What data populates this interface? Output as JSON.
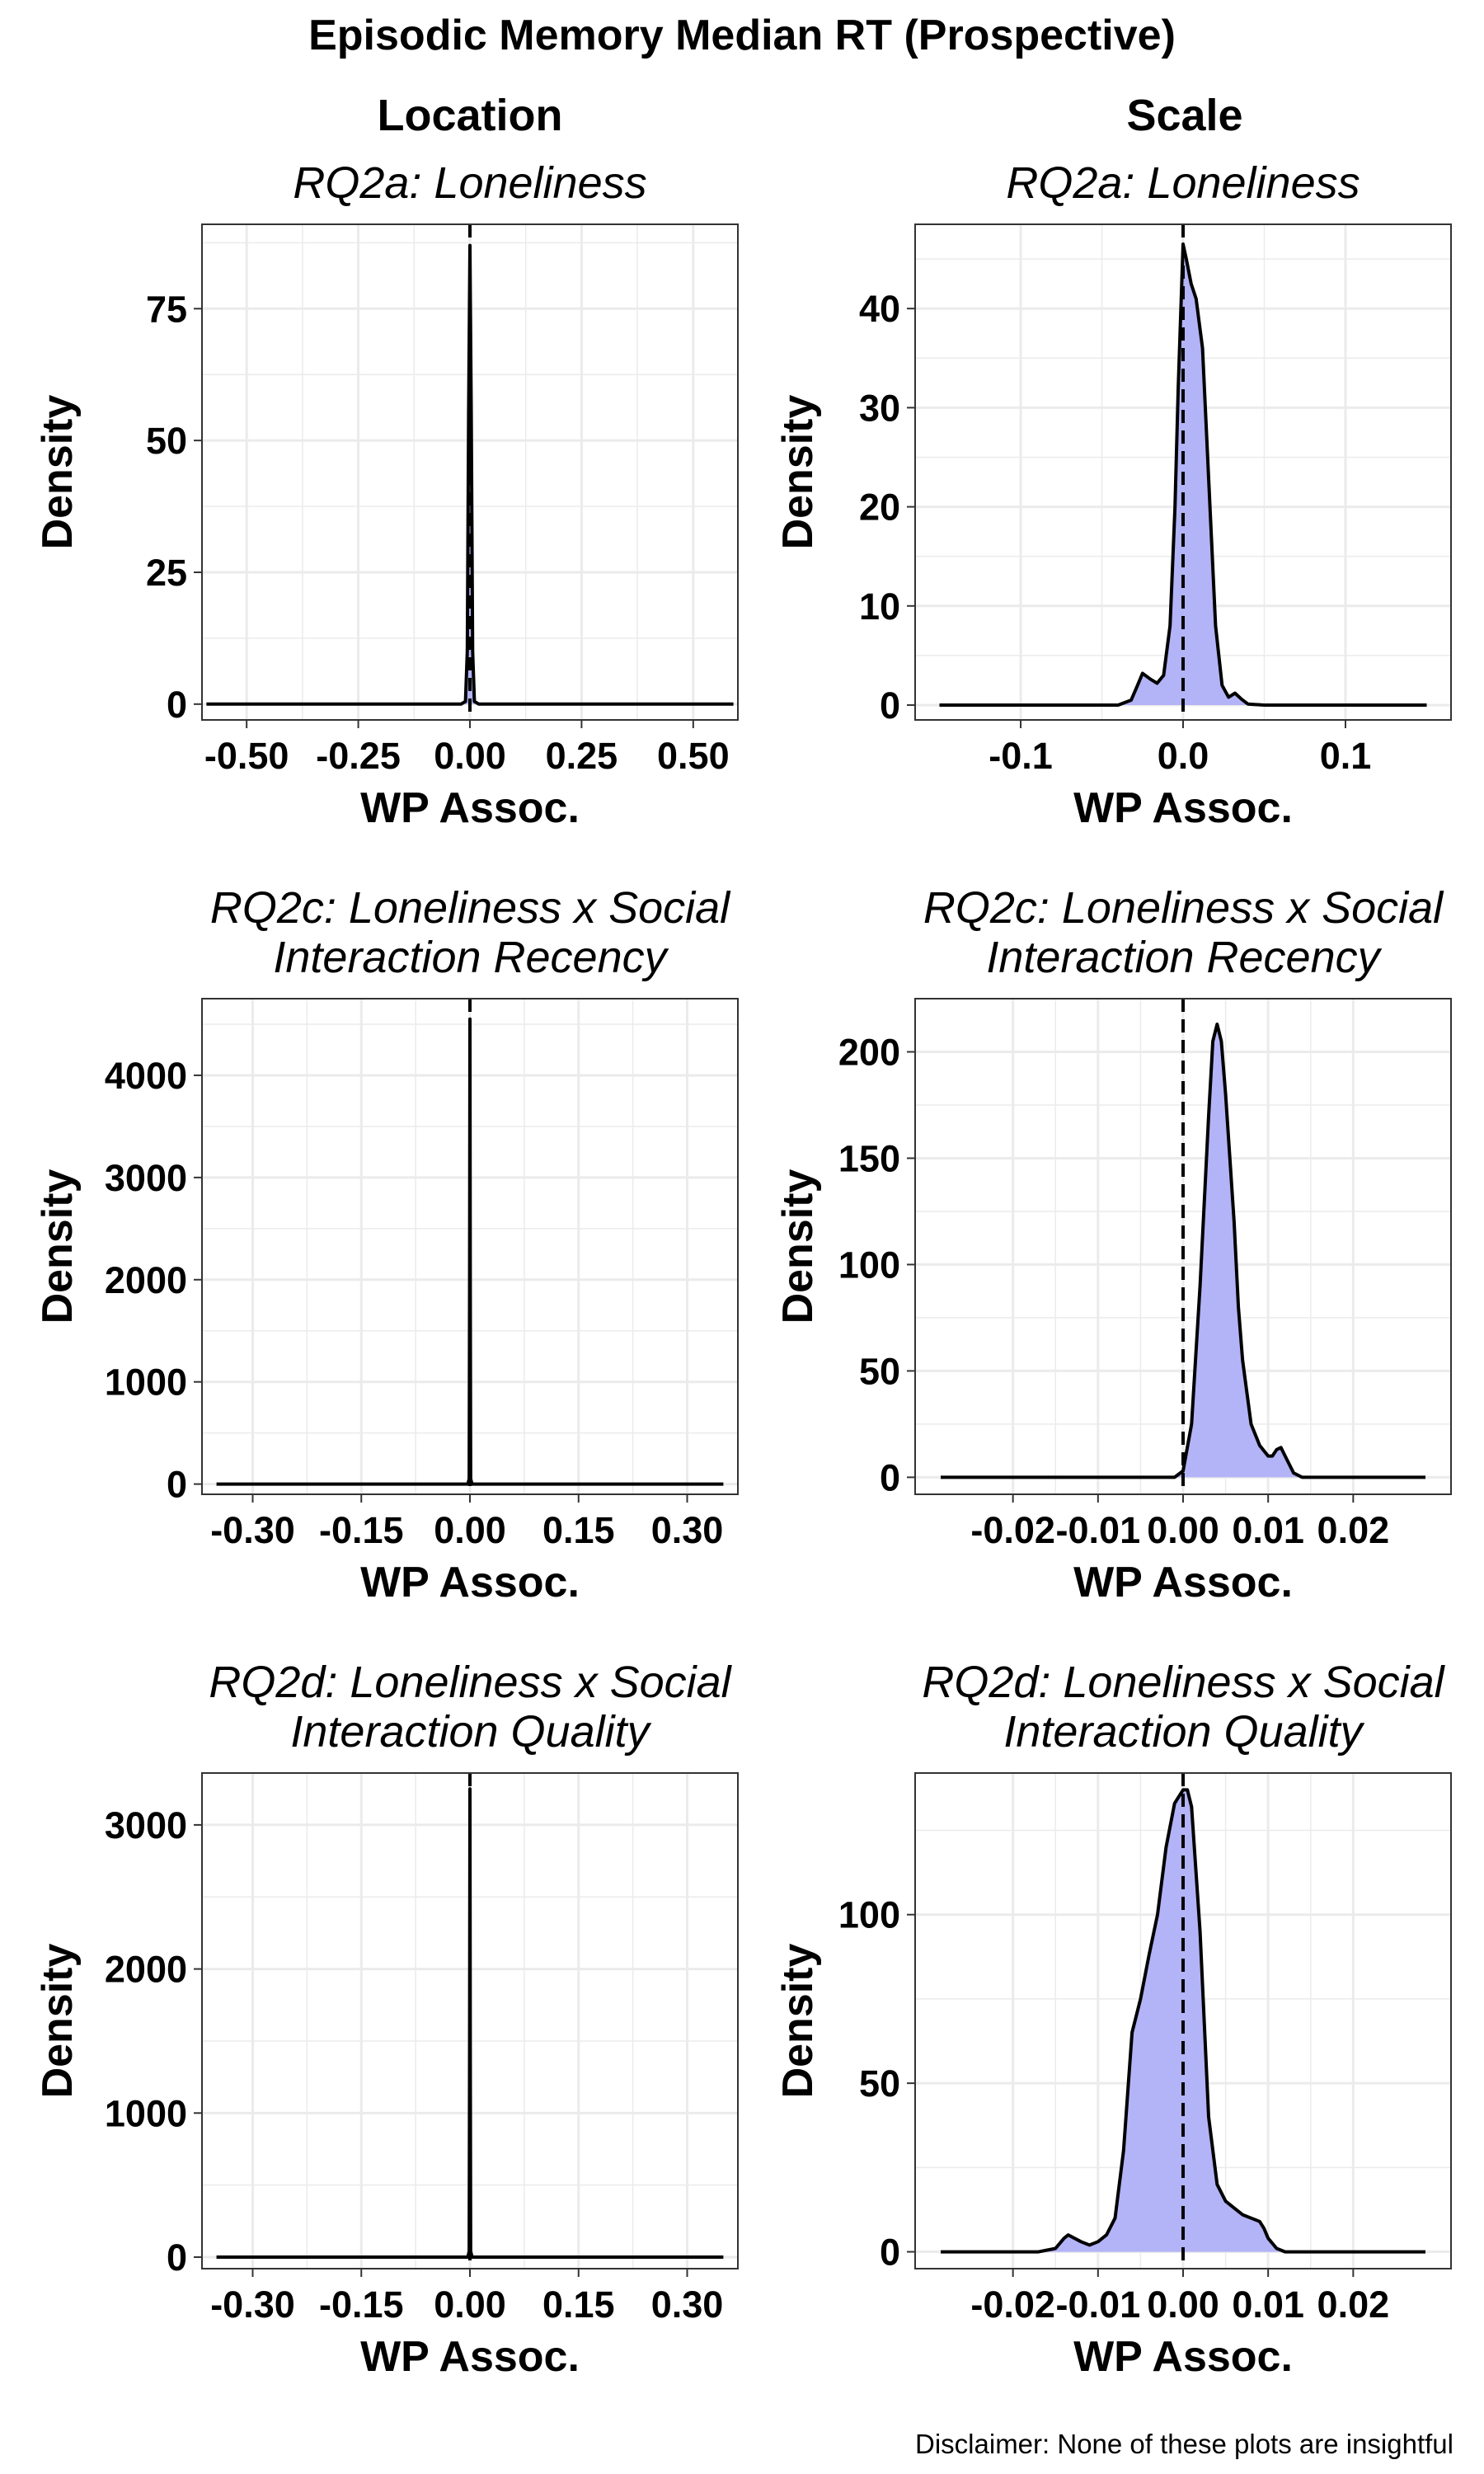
{
  "figure": {
    "title": "Episodic Memory Median RT (Prospective)",
    "column_titles": [
      "Location",
      "Scale"
    ],
    "disclaimer": "Disclaimer: None of these plots are insightful"
  },
  "style": {
    "fill_color": "#b3b3f7",
    "line_color": "#000000",
    "grid_color": "#ebebeb",
    "border_color": "#333333"
  },
  "chart_data": [
    {
      "type": "area",
      "column": "Location",
      "title": [
        "RQ2a: Loneliness"
      ],
      "xlabel": "WP Assoc.",
      "ylabel": "Density",
      "xlim": [
        -0.6,
        0.6
      ],
      "ylim": [
        -3,
        91
      ],
      "xticks": [
        -0.5,
        -0.25,
        0.0,
        0.25,
        0.5
      ],
      "xtick_labels": [
        "-0.50",
        "-0.25",
        "0.00",
        "0.25",
        "0.50"
      ],
      "yticks": [
        0,
        25,
        50,
        75
      ],
      "ytick_labels": [
        "0",
        "25",
        "50",
        "75"
      ],
      "reference_line_x": 0,
      "grid": true,
      "series": [
        {
          "x": [
            -0.59,
            -0.02,
            -0.01,
            -0.006,
            -0.003,
            0,
            0.003,
            0.006,
            0.01,
            0.02,
            0.59
          ],
          "values": [
            0,
            0,
            0.5,
            10,
            55,
            87,
            55,
            10,
            0.5,
            0,
            0
          ]
        }
      ]
    },
    {
      "type": "area",
      "column": "Scale",
      "title": [
        "RQ2a: Loneliness"
      ],
      "xlabel": "WP Assoc.",
      "ylabel": "Density",
      "xlim": [
        -0.165,
        0.165
      ],
      "ylim": [
        -1.5,
        48.5
      ],
      "xticks": [
        -0.1,
        0.0,
        0.1
      ],
      "xtick_labels": [
        "-0.1",
        "0.0",
        "0.1"
      ],
      "yticks": [
        0,
        10,
        20,
        30,
        40
      ],
      "ytick_labels": [
        "0",
        "10",
        "20",
        "30",
        "40"
      ],
      "reference_line_x": 0,
      "grid": true,
      "series": [
        {
          "x": [
            -0.15,
            -0.04,
            -0.032,
            -0.028,
            -0.025,
            -0.02,
            -0.016,
            -0.012,
            -0.008,
            -0.005,
            -0.003,
            0,
            0.002,
            0.005,
            0.008,
            0.012,
            0.016,
            0.02,
            0.024,
            0.028,
            0.032,
            0.036,
            0.04,
            0.05,
            0.15
          ],
          "values": [
            0,
            0,
            0.5,
            2,
            3.2,
            2.6,
            2.2,
            3,
            8,
            20,
            32,
            46.5,
            45,
            42.5,
            41,
            36,
            22,
            8,
            2,
            0.8,
            1.2,
            0.6,
            0.1,
            0,
            0
          ]
        }
      ]
    },
    {
      "type": "area",
      "column": "Location",
      "title": [
        "RQ2c: Loneliness x Social",
        "Interaction Recency"
      ],
      "xlabel": "WP Assoc.",
      "ylabel": "Density",
      "xlim": [
        -0.37,
        0.37
      ],
      "ylim": [
        -100,
        4750
      ],
      "xticks": [
        -0.3,
        -0.15,
        0.0,
        0.15,
        0.3
      ],
      "xtick_labels": [
        "-0.30",
        "-0.15",
        "0.00",
        "0.15",
        "0.30"
      ],
      "yticks": [
        0,
        1000,
        2000,
        3000,
        4000
      ],
      "ytick_labels": [
        "0",
        "1000",
        "2000",
        "3000",
        "4000"
      ],
      "reference_line_x": 0,
      "grid": true,
      "series": [
        {
          "x": [
            -0.35,
            -0.003,
            -0.001,
            -0.0004,
            0,
            0.0004,
            0.001,
            0.003,
            0.35
          ],
          "values": [
            0,
            0,
            50,
            2000,
            4550,
            2000,
            50,
            0,
            0
          ]
        }
      ]
    },
    {
      "type": "area",
      "column": "Scale",
      "title": [
        "RQ2c: Loneliness x Social",
        "Interaction Recency"
      ],
      "xlabel": "WP Assoc.",
      "ylabel": "Density",
      "xlim": [
        -0.0315,
        0.0315
      ],
      "ylim": [
        -8,
        225
      ],
      "xticks": [
        -0.02,
        -0.01,
        0.0,
        0.01,
        0.02
      ],
      "xtick_labels": [
        "-0.02",
        "-0.01",
        "0.00",
        "0.01",
        "0.02"
      ],
      "yticks": [
        0,
        50,
        100,
        150,
        200
      ],
      "ytick_labels": [
        "0",
        "50",
        "100",
        "150",
        "200"
      ],
      "reference_line_x": 0,
      "grid": true,
      "series": [
        {
          "x": [
            -0.0285,
            -0.001,
            0,
            0.001,
            0.002,
            0.003,
            0.0035,
            0.004,
            0.0045,
            0.005,
            0.006,
            0.0065,
            0.007,
            0.008,
            0.009,
            0.01,
            0.0105,
            0.011,
            0.0115,
            0.012,
            0.013,
            0.014,
            0.0285
          ],
          "values": [
            0,
            0,
            3,
            25,
            90,
            170,
            205,
            213,
            205,
            180,
            120,
            80,
            55,
            25,
            15,
            10,
            10,
            13,
            14,
            10,
            2,
            0,
            0
          ]
        }
      ]
    },
    {
      "type": "area",
      "column": "Location",
      "title": [
        "RQ2d: Loneliness x Social",
        "Interaction Quality"
      ],
      "xlabel": "WP Assoc.",
      "ylabel": "Density",
      "xlim": [
        -0.37,
        0.37
      ],
      "ylim": [
        -80,
        3360
      ],
      "xticks": [
        -0.3,
        -0.15,
        0.0,
        0.15,
        0.3
      ],
      "xtick_labels": [
        "-0.30",
        "-0.15",
        "0.00",
        "0.15",
        "0.30"
      ],
      "yticks": [
        0,
        1000,
        2000,
        3000
      ],
      "ytick_labels": [
        "0",
        "1000",
        "2000",
        "3000"
      ],
      "reference_line_x": 0,
      "grid": true,
      "series": [
        {
          "x": [
            -0.35,
            -0.003,
            -0.001,
            -0.0004,
            0,
            0.0004,
            0.001,
            0.003,
            0.35
          ],
          "values": [
            0,
            0,
            40,
            1500,
            3250,
            1500,
            40,
            0,
            0
          ]
        }
      ]
    },
    {
      "type": "area",
      "column": "Scale",
      "title": [
        "RQ2d: Loneliness x Social",
        "Interaction Quality"
      ],
      "xlabel": "WP Assoc.",
      "ylabel": "Density",
      "xlim": [
        -0.0315,
        0.0315
      ],
      "ylim": [
        -5,
        142
      ],
      "xticks": [
        -0.02,
        -0.01,
        0.0,
        0.01,
        0.02
      ],
      "xtick_labels": [
        "-0.02",
        "-0.01",
        "0.00",
        "0.01",
        "0.02"
      ],
      "yticks": [
        0,
        50,
        100
      ],
      "ytick_labels": [
        "0",
        "50",
        "100"
      ],
      "reference_line_x": 0,
      "grid": true,
      "series": [
        {
          "x": [
            -0.0285,
            -0.017,
            -0.015,
            -0.014,
            -0.0135,
            -0.012,
            -0.011,
            -0.01,
            -0.009,
            -0.008,
            -0.007,
            -0.006,
            -0.005,
            -0.004,
            -0.003,
            -0.002,
            -0.001,
            0,
            0.0005,
            0.001,
            0.002,
            0.003,
            0.004,
            0.005,
            0.006,
            0.007,
            0.008,
            0.009,
            0.0095,
            0.01,
            0.011,
            0.012,
            0.0285
          ],
          "values": [
            0,
            0,
            1,
            4,
            5,
            3,
            2,
            3,
            5,
            10,
            30,
            65,
            75,
            88,
            100,
            120,
            133,
            137,
            137,
            132,
            95,
            40,
            20,
            15,
            13,
            11,
            10,
            9,
            7,
            4,
            1,
            0,
            0
          ]
        }
      ]
    }
  ]
}
